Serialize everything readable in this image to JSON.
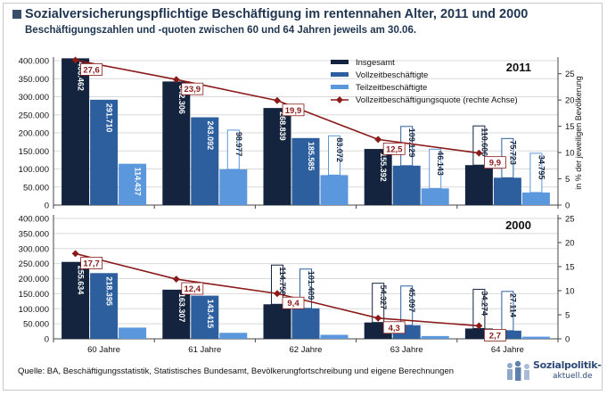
{
  "title": "Sozialversicherungspflichtige Beschäftigung im rentennahen Alter, 2011 und 2000",
  "subtitle": "Beschäftigungszahlen und -quoten zwischen 60 und 64 Jahren jeweils am 30.06.",
  "source": "Quelle: BA, Beschäftigungsstatistik, Statistisches Bundesamt, Bevölkerungfortschreibung und eigene Berechnungen",
  "logo": {
    "line1": "Sozialpolitik-",
    "line2": "aktuell.de"
  },
  "colors": {
    "insgesamt": "#14243e",
    "vollzeit": "#2d5f9e",
    "teilzeit": "#5b97dc",
    "quote": "#8b1a1a",
    "grid": "#d9d9d9"
  },
  "chart_data": [
    {
      "type": "bar",
      "title": "2011",
      "categories": [
        "60 Jahre",
        "61 Jahre",
        "62 Jahre",
        "63 Jahre",
        "64 Jahre"
      ],
      "show_category_labels": false,
      "series": [
        {
          "name": "Insgesamt",
          "values": [
            406462,
            342306,
            268839,
            155392,
            110606
          ],
          "labels": [
            "406.462",
            "342.306",
            "268.839",
            "155.392",
            "110.606"
          ]
        },
        {
          "name": "Vollzeitbeschäftigte",
          "values": [
            291710,
            243092,
            185585,
            109129,
            75723
          ],
          "labels": [
            "291.710",
            "243.092",
            "185.585",
            "109.129",
            "75.723"
          ]
        },
        {
          "name": "Teilzeitbeschäftigte",
          "values": [
            114437,
            98977,
            83072,
            46143,
            34795
          ],
          "labels": [
            "114.437",
            "98.977",
            "83.072",
            "46.143",
            "34.795"
          ]
        }
      ],
      "line": {
        "name": "Vollzeitbeschäftigungsquote (rechte Achse)",
        "values": [
          27.6,
          23.9,
          19.9,
          12.5,
          9.9
        ],
        "labels": [
          "27,6",
          "23,9",
          "19,9",
          "12,5",
          "9,9"
        ]
      },
      "y_left": {
        "min": 0,
        "max": 400000,
        "ticks": [
          "0",
          "50.000",
          "100.000",
          "150.000",
          "200.000",
          "250.000",
          "300.000",
          "350.000",
          "400.000"
        ]
      },
      "y_right": {
        "min": 0,
        "max": 27.5,
        "ticks": [
          "0",
          "5",
          "10",
          "15",
          "20",
          "25"
        ],
        "label": "in % der jeweiligen Bevölkerung"
      },
      "legend": "top-right",
      "grid": true
    },
    {
      "type": "bar",
      "title": "2000",
      "categories": [
        "60 Jahre",
        "61 Jahre",
        "62 Jahre",
        "63 Jahre",
        "64 Jahre"
      ],
      "show_category_labels": true,
      "series": [
        {
          "name": "Insgesamt",
          "values": [
            255634,
            163307,
            114758,
            54327,
            34274
          ],
          "labels": [
            "255.634",
            "163.307",
            "114.758",
            "54.327",
            "34.274"
          ]
        },
        {
          "name": "Vollzeitbeschäftigte",
          "values": [
            218395,
            143415,
            101409,
            45097,
            27114
          ],
          "labels": [
            "218.395",
            "143.415",
            "101.409",
            "45.097",
            "27.114"
          ]
        },
        {
          "name": "Teilzeitbeschäftigte",
          "values": [
            37239,
            19892,
            13349,
            9230,
            7160
          ],
          "labels": [
            "",
            "",
            "",
            "",
            ""
          ]
        }
      ],
      "line": {
        "name": "Vollzeitbeschäftigungsquote (rechte Achse)",
        "values": [
          17.7,
          12.4,
          9.4,
          4.3,
          2.7
        ],
        "labels": [
          "17,7",
          "12,4",
          "9,4",
          "4,3",
          "2,7"
        ]
      },
      "y_left": {
        "min": 0,
        "max": 400000,
        "ticks": [
          "0",
          "50.000",
          "100.000",
          "150.000",
          "200.000",
          "250.000",
          "300.000",
          "350.000",
          "400.000"
        ]
      },
      "y_right": {
        "min": 0,
        "max": 25,
        "ticks": [
          "0",
          "5",
          "10",
          "15",
          "20",
          "25"
        ],
        "label": ""
      },
      "legend": "none",
      "grid": true
    }
  ]
}
